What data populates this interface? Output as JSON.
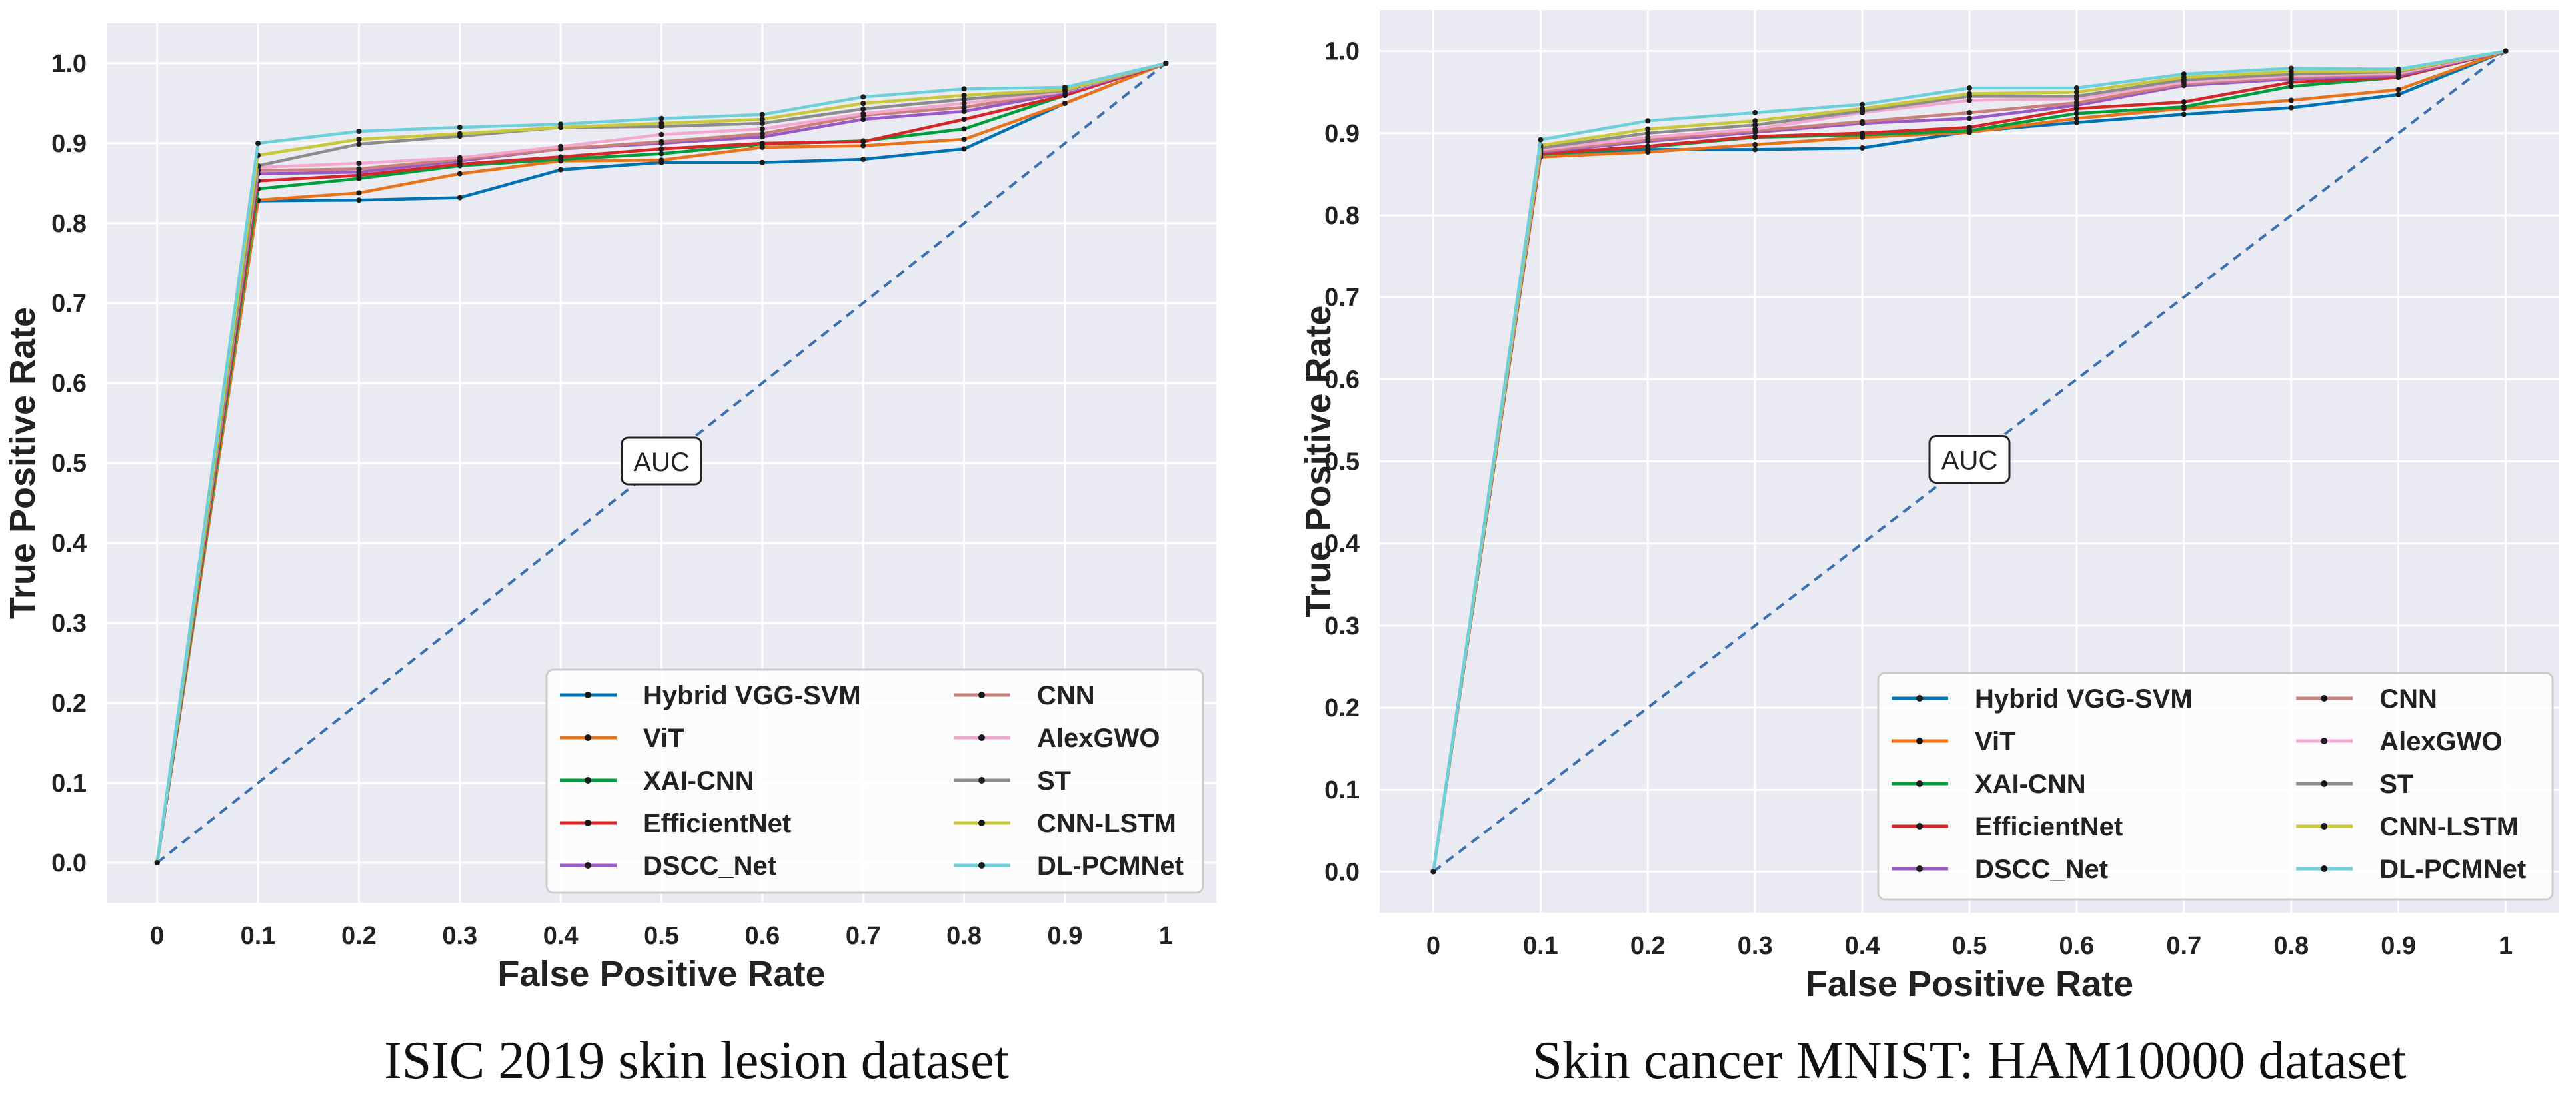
{
  "chart_data": [
    {
      "type": "line",
      "caption": "ISIC 2019 skin lesion dataset",
      "xlabel": "False Positive Rate",
      "ylabel": "True Positive Rate",
      "annotation": "AUC",
      "x": [
        0,
        0.1,
        0.2,
        0.3,
        0.4,
        0.5,
        0.6,
        0.7,
        0.8,
        0.9,
        1
      ],
      "xticks": [
        "0",
        "0.1",
        "0.2",
        "0.3",
        "0.4",
        "0.5",
        "0.6",
        "0.7",
        "0.8",
        "0.9",
        "1"
      ],
      "yticks": [
        "0.0",
        "0.1",
        "0.2",
        "0.3",
        "0.4",
        "0.5",
        "0.6",
        "0.7",
        "0.8",
        "0.9",
        "1.0"
      ],
      "xlim": [
        -0.05,
        1.05
      ],
      "ylim": [
        -0.05,
        1.05
      ],
      "grid": true,
      "legend_position": "lower-right",
      "series": [
        {
          "name": "Hybrid VGG-SVM",
          "color": "#0072B2",
          "values": [
            0,
            0.828,
            0.829,
            0.832,
            0.867,
            0.876,
            0.876,
            0.88,
            0.893,
            0.95,
            1.0
          ]
        },
        {
          "name": "ViT",
          "color": "#E8731A",
          "values": [
            0,
            0.829,
            0.838,
            0.862,
            0.878,
            0.879,
            0.895,
            0.897,
            0.905,
            0.95,
            1.0
          ]
        },
        {
          "name": "XAI-CNN",
          "color": "#009E3A",
          "values": [
            0,
            0.843,
            0.856,
            0.872,
            0.88,
            0.887,
            0.899,
            0.903,
            0.918,
            0.96,
            1.0
          ]
        },
        {
          "name": "EfficientNet",
          "color": "#D62728",
          "values": [
            0,
            0.853,
            0.86,
            0.874,
            0.883,
            0.893,
            0.9,
            0.902,
            0.93,
            0.96,
            1.0
          ]
        },
        {
          "name": "DSCC_Net",
          "color": "#9A59C7",
          "values": [
            0,
            0.862,
            0.864,
            0.878,
            0.893,
            0.9,
            0.908,
            0.93,
            0.94,
            0.963,
            1.0
          ]
        },
        {
          "name": "CNN",
          "color": "#C97F7A",
          "values": [
            0,
            0.866,
            0.868,
            0.88,
            0.893,
            0.902,
            0.912,
            0.935,
            0.945,
            0.965,
            1.0
          ]
        },
        {
          "name": "AlexGWO",
          "color": "#F4A7CF",
          "values": [
            0,
            0.87,
            0.875,
            0.882,
            0.896,
            0.911,
            0.918,
            0.937,
            0.95,
            0.965,
            1.0
          ]
        },
        {
          "name": "ST",
          "color": "#8C8C8C",
          "values": [
            0,
            0.872,
            0.899,
            0.909,
            0.92,
            0.921,
            0.925,
            0.943,
            0.955,
            0.966,
            1.0
          ]
        },
        {
          "name": "CNN-LSTM",
          "color": "#C8C83A",
          "values": [
            0,
            0.885,
            0.905,
            0.912,
            0.92,
            0.925,
            0.93,
            0.95,
            0.96,
            0.967,
            1.0
          ]
        },
        {
          "name": "DL-PCMNet",
          "color": "#6CCFDA",
          "values": [
            0,
            0.9,
            0.915,
            0.92,
            0.924,
            0.931,
            0.936,
            0.958,
            0.968,
            0.97,
            1.0
          ]
        }
      ]
    },
    {
      "type": "line",
      "caption": "Skin cancer MNIST: HAM10000 dataset",
      "xlabel": "False Positive Rate",
      "ylabel": "True Positive Rate",
      "annotation": "AUC",
      "x": [
        0,
        0.1,
        0.2,
        0.3,
        0.4,
        0.5,
        0.6,
        0.7,
        0.8,
        0.9,
        1
      ],
      "xticks": [
        "0",
        "0.1",
        "0.2",
        "0.3",
        "0.4",
        "0.5",
        "0.6",
        "0.7",
        "0.8",
        "0.9",
        "1"
      ],
      "yticks": [
        "0.0",
        "0.1",
        "0.2",
        "0.3",
        "0.4",
        "0.5",
        "0.6",
        "0.7",
        "0.8",
        "0.9",
        "1.0"
      ],
      "xlim": [
        -0.05,
        1.05
      ],
      "ylim": [
        -0.05,
        1.05
      ],
      "grid": true,
      "legend_position": "lower-right",
      "series": [
        {
          "name": "Hybrid VGG-SVM",
          "color": "#0072B2",
          "values": [
            0,
            0.872,
            0.88,
            0.88,
            0.882,
            0.902,
            0.913,
            0.923,
            0.931,
            0.947,
            1.0
          ]
        },
        {
          "name": "ViT",
          "color": "#E8731A",
          "values": [
            0,
            0.871,
            0.877,
            0.886,
            0.895,
            0.901,
            0.918,
            0.93,
            0.94,
            0.953,
            1.0
          ]
        },
        {
          "name": "XAI-CNN",
          "color": "#009E3A",
          "values": [
            0,
            0.874,
            0.883,
            0.895,
            0.898,
            0.903,
            0.924,
            0.932,
            0.957,
            0.968,
            1.0
          ]
        },
        {
          "name": "EfficientNet",
          "color": "#D62728",
          "values": [
            0,
            0.875,
            0.884,
            0.896,
            0.9,
            0.907,
            0.93,
            0.938,
            0.962,
            0.968,
            1.0
          ]
        },
        {
          "name": "DSCC_Net",
          "color": "#9A59C7",
          "values": [
            0,
            0.877,
            0.89,
            0.901,
            0.912,
            0.918,
            0.934,
            0.958,
            0.966,
            0.97,
            1.0
          ]
        },
        {
          "name": "CNN",
          "color": "#C97F7A",
          "values": [
            0,
            0.878,
            0.892,
            0.903,
            0.914,
            0.925,
            0.937,
            0.96,
            0.968,
            0.972,
            1.0
          ]
        },
        {
          "name": "AlexGWO",
          "color": "#F4A7CF",
          "values": [
            0,
            0.88,
            0.895,
            0.905,
            0.925,
            0.94,
            0.942,
            0.962,
            0.97,
            0.973,
            1.0
          ]
        },
        {
          "name": "ST",
          "color": "#8C8C8C",
          "values": [
            0,
            0.882,
            0.9,
            0.91,
            0.927,
            0.945,
            0.945,
            0.965,
            0.972,
            0.975,
            1.0
          ]
        },
        {
          "name": "CNN-LSTM",
          "color": "#C8C83A",
          "values": [
            0,
            0.885,
            0.905,
            0.915,
            0.93,
            0.948,
            0.95,
            0.968,
            0.975,
            0.976,
            1.0
          ]
        },
        {
          "name": "DL-PCMNet",
          "color": "#6CCFDA",
          "values": [
            0,
            0.892,
            0.915,
            0.925,
            0.935,
            0.955,
            0.955,
            0.972,
            0.979,
            0.978,
            1.0
          ]
        }
      ]
    }
  ]
}
